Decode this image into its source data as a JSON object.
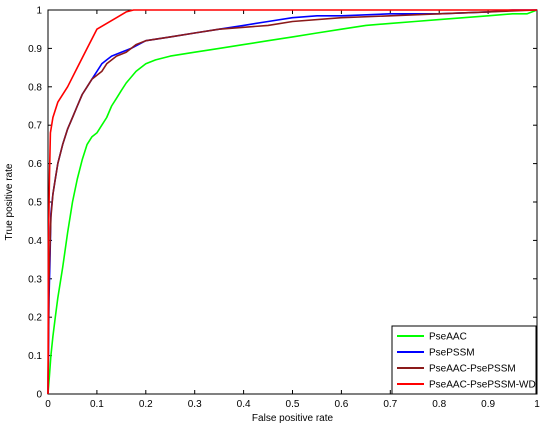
{
  "chart_data": {
    "type": "line",
    "title": "",
    "xlabel": "False positive rate",
    "ylabel": "True positive rate",
    "xlim": [
      0,
      1
    ],
    "ylim": [
      0,
      1
    ],
    "xticks": [
      "0",
      "0.1",
      "0.2",
      "0.3",
      "0.4",
      "0.5",
      "0.6",
      "0.7",
      "0.8",
      "0.9",
      "1"
    ],
    "yticks": [
      "0",
      "0.1",
      "0.2",
      "0.3",
      "0.4",
      "0.5",
      "0.6",
      "0.7",
      "0.8",
      "0.9",
      "1"
    ],
    "grid": false,
    "legend_position": "bottom-right",
    "series": [
      {
        "name": "PseAAC",
        "color": "#00ff00",
        "x": [
          0,
          0.003,
          0.006,
          0.01,
          0.015,
          0.02,
          0.03,
          0.04,
          0.05,
          0.06,
          0.07,
          0.08,
          0.09,
          0.1,
          0.11,
          0.12,
          0.13,
          0.14,
          0.15,
          0.16,
          0.18,
          0.2,
          0.22,
          0.25,
          0.3,
          0.35,
          0.4,
          0.45,
          0.5,
          0.55,
          0.6,
          0.65,
          0.7,
          0.75,
          0.8,
          0.85,
          0.9,
          0.95,
          0.98,
          1.0
        ],
        "y": [
          0,
          0.05,
          0.1,
          0.15,
          0.2,
          0.25,
          0.33,
          0.42,
          0.5,
          0.56,
          0.61,
          0.65,
          0.67,
          0.68,
          0.7,
          0.72,
          0.75,
          0.77,
          0.79,
          0.81,
          0.84,
          0.86,
          0.87,
          0.88,
          0.89,
          0.9,
          0.91,
          0.92,
          0.93,
          0.94,
          0.95,
          0.96,
          0.965,
          0.97,
          0.975,
          0.98,
          0.985,
          0.99,
          0.99,
          1.0
        ]
      },
      {
        "name": "PsePSSM",
        "color": "#0000ff",
        "x": [
          0,
          0.002,
          0.004,
          0.006,
          0.01,
          0.015,
          0.02,
          0.03,
          0.04,
          0.05,
          0.06,
          0.07,
          0.08,
          0.09,
          0.1,
          0.11,
          0.12,
          0.13,
          0.15,
          0.17,
          0.2,
          0.25,
          0.3,
          0.35,
          0.4,
          0.45,
          0.5,
          0.55,
          0.6,
          0.7,
          0.8,
          0.9,
          0.95,
          1.0
        ],
        "y": [
          0,
          0.25,
          0.35,
          0.47,
          0.52,
          0.56,
          0.6,
          0.65,
          0.69,
          0.72,
          0.75,
          0.78,
          0.8,
          0.82,
          0.84,
          0.86,
          0.87,
          0.88,
          0.89,
          0.9,
          0.92,
          0.93,
          0.94,
          0.95,
          0.96,
          0.97,
          0.98,
          0.985,
          0.985,
          0.99,
          0.99,
          0.995,
          1.0,
          1.0
        ]
      },
      {
        "name": "PseAAC-PsePSSM",
        "color": "#8b1a1a",
        "x": [
          0,
          0.002,
          0.004,
          0.006,
          0.01,
          0.015,
          0.02,
          0.03,
          0.04,
          0.05,
          0.06,
          0.07,
          0.08,
          0.09,
          0.1,
          0.11,
          0.12,
          0.14,
          0.16,
          0.18,
          0.2,
          0.25,
          0.3,
          0.35,
          0.4,
          0.45,
          0.5,
          0.6,
          0.7,
          0.8,
          0.9,
          1.0
        ],
        "y": [
          0,
          0.3,
          0.38,
          0.46,
          0.52,
          0.56,
          0.6,
          0.65,
          0.69,
          0.72,
          0.75,
          0.78,
          0.8,
          0.82,
          0.83,
          0.84,
          0.86,
          0.88,
          0.89,
          0.91,
          0.92,
          0.93,
          0.94,
          0.95,
          0.955,
          0.96,
          0.97,
          0.98,
          0.985,
          0.99,
          0.995,
          1.0
        ]
      },
      {
        "name": "PseAAC-PsePSSM-WD",
        "color": "#ff0000",
        "x": [
          0,
          0.001,
          0.003,
          0.005,
          0.01,
          0.02,
          0.04,
          0.06,
          0.08,
          0.1,
          0.12,
          0.14,
          0.16,
          0.175,
          0.2,
          0.3,
          0.5,
          0.7,
          1.0
        ],
        "y": [
          0,
          0.4,
          0.57,
          0.68,
          0.72,
          0.76,
          0.8,
          0.85,
          0.9,
          0.95,
          0.965,
          0.98,
          0.995,
          1.0,
          1.0,
          1.0,
          1.0,
          1.0,
          1.0
        ]
      }
    ]
  }
}
